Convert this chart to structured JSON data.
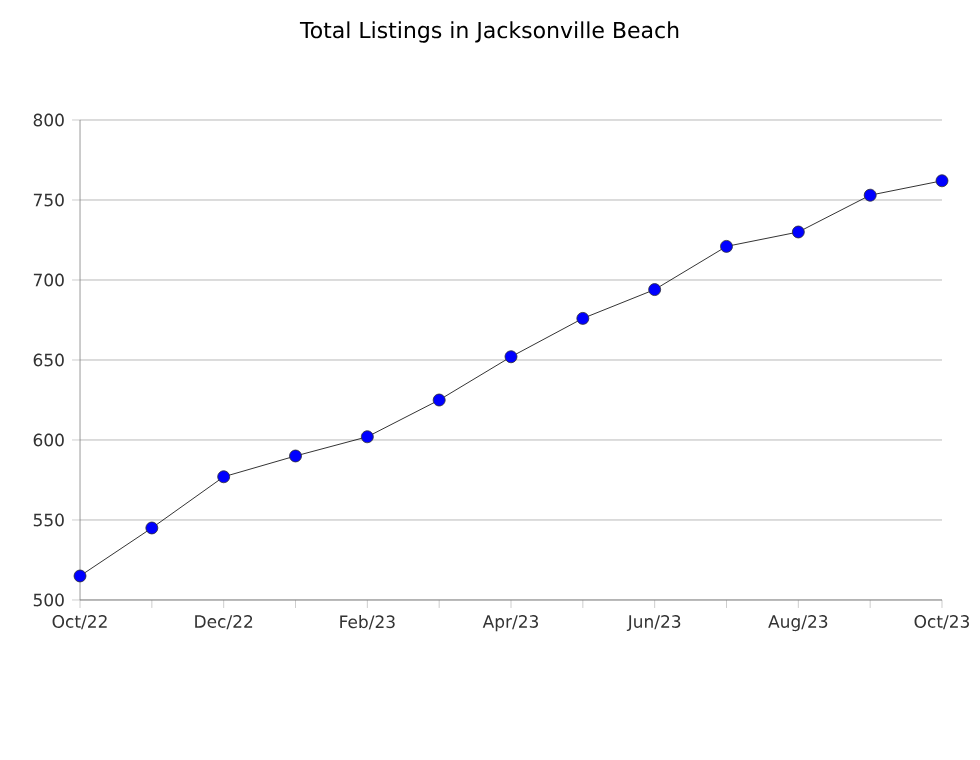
{
  "chart_data": {
    "type": "line",
    "title": "Total Listings in Jacksonville Beach",
    "categories": [
      "Oct/22",
      null,
      "Dec/22",
      null,
      "Feb/23",
      null,
      "Apr/23",
      null,
      "Jun/23",
      null,
      "Aug/23",
      null,
      "Oct/23"
    ],
    "values": [
      515,
      545,
      577,
      590,
      602,
      625,
      652,
      676,
      694,
      721,
      730,
      753,
      762
    ],
    "color": "#0000ff",
    "marker": "circle",
    "line_style": "solid",
    "ylim": [
      500,
      800
    ],
    "yticks": [
      500,
      550,
      600,
      650,
      700,
      750,
      800
    ],
    "grid": "y"
  }
}
